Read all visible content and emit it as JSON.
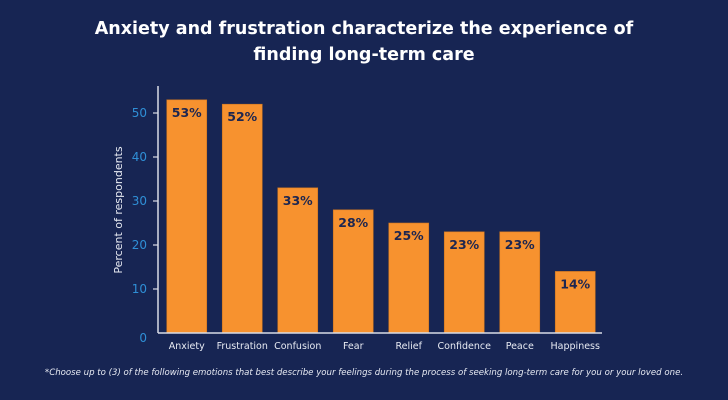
{
  "chart_data": {
    "type": "bar",
    "title_line1": "Anxiety and frustration characterize the experience of",
    "title_line2": "finding long-term care",
    "xlabel": "",
    "ylabel": "Percent of respondents",
    "ylim": [
      0,
      55
    ],
    "yticks": [
      0,
      10,
      20,
      30,
      40,
      50
    ],
    "categories": [
      "Anxiety",
      "Frustration",
      "Confusion",
      "Fear",
      "Relief",
      "Confidence",
      "Peace",
      "Happiness"
    ],
    "values": [
      53,
      52,
      33,
      28,
      25,
      23,
      23,
      14
    ],
    "data_labels": [
      "53%",
      "52%",
      "33%",
      "28%",
      "25%",
      "23%",
      "23%",
      "14%"
    ],
    "grid": false,
    "legend": "none",
    "footnote": "*Choose up to (3) of the following emotions that best describe your feelings during the process of seeking long-term care for you or your loved one.",
    "colors": {
      "background": "#172553",
      "bar": "#f7922f",
      "bar_edge": "#c97420",
      "axis": "#d9dce6",
      "tick_label": "#2f8fd6",
      "value_label": "#1d2650",
      "text": "#ffffff"
    }
  }
}
